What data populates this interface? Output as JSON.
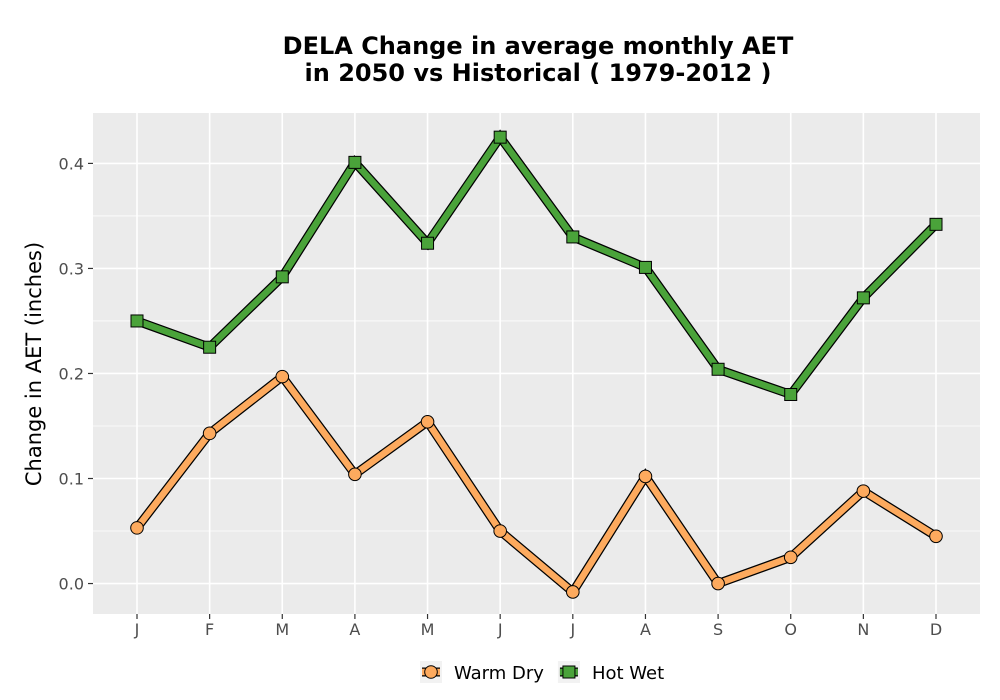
{
  "chart_data": {
    "type": "line",
    "title": [
      "DELA  Change in average monthly AET",
      "in 2050 vs Historical ( 1979-2012 )"
    ],
    "xlabel": "",
    "ylabel": "Change in AET (inches)",
    "categories": [
      "J",
      "F",
      "M",
      "A",
      "M",
      "J",
      "J",
      "A",
      "S",
      "O",
      "N",
      "D"
    ],
    "ylim": [
      -0.029,
      0.448
    ],
    "yticks": [
      0.0,
      0.1,
      0.2,
      0.3,
      0.4
    ],
    "ytick_labels": [
      "0.0",
      "0.1",
      "0.2",
      "0.3",
      "0.4"
    ],
    "grid": true,
    "legend_position": "bottom",
    "series": [
      {
        "name": "Warm Dry",
        "marker": "circle",
        "color": "#FDAA5E",
        "values": [
          0.053,
          0.143,
          0.197,
          0.104,
          0.154,
          0.05,
          -0.008,
          0.102,
          0.0,
          0.025,
          0.088,
          0.045
        ]
      },
      {
        "name": "Hot Wet",
        "marker": "square",
        "color": "#4AA33A",
        "values": [
          0.25,
          0.225,
          0.292,
          0.401,
          0.324,
          0.425,
          0.33,
          0.301,
          0.204,
          0.18,
          0.272,
          0.342
        ]
      }
    ]
  }
}
